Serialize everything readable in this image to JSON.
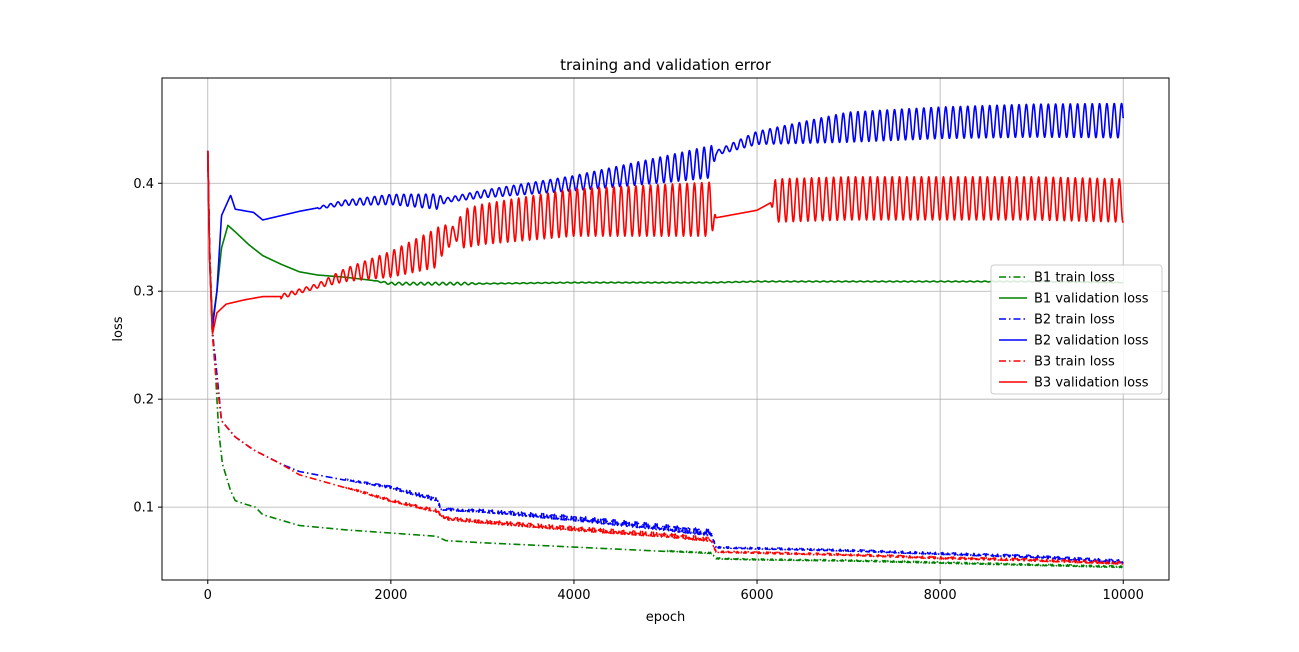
{
  "chart_data": {
    "type": "line",
    "title": "training and validation error",
    "xlabel": "epoch",
    "ylabel": "loss",
    "xlim": [
      -500,
      10500
    ],
    "ylim": [
      0.0325,
      0.4975
    ],
    "xticks": [
      0,
      2000,
      4000,
      6000,
      8000,
      10000
    ],
    "yticks": [
      0.1,
      0.2,
      0.3,
      0.4
    ],
    "xtick_labels": [
      "0",
      "2000",
      "4000",
      "6000",
      "8000",
      "10000"
    ],
    "ytick_labels": [
      "0.1",
      "0.2",
      "0.3",
      "0.4"
    ],
    "grid": true,
    "legend_position": "center-right",
    "series": [
      {
        "name": "B1 train loss",
        "color": "#008000",
        "style": "dashdot",
        "points": [
          [
            0,
            0.43
          ],
          [
            20,
            0.34
          ],
          [
            50,
            0.27
          ],
          [
            80,
            0.23
          ],
          [
            120,
            0.17
          ],
          [
            160,
            0.14
          ],
          [
            250,
            0.115
          ],
          [
            300,
            0.106
          ],
          [
            400,
            0.103
          ],
          [
            520,
            0.1
          ],
          [
            600,
            0.093
          ],
          [
            800,
            0.088
          ],
          [
            1000,
            0.083
          ],
          [
            1500,
            0.079
          ],
          [
            2000,
            0.076
          ],
          [
            2500,
            0.073
          ],
          [
            2600,
            0.069
          ],
          [
            3000,
            0.067
          ],
          [
            4000,
            0.063
          ],
          [
            5000,
            0.059
          ],
          [
            5500,
            0.057
          ],
          [
            5550,
            0.052
          ],
          [
            6000,
            0.051
          ],
          [
            7000,
            0.05
          ],
          [
            8000,
            0.048
          ],
          [
            9000,
            0.046
          ],
          [
            10000,
            0.044
          ]
        ],
        "osc": [
          [
            5000,
            0.001
          ],
          [
            10000,
            0.0015
          ]
        ]
      },
      {
        "name": "B1 validation loss",
        "color": "#008000",
        "style": "solid",
        "points": [
          [
            0,
            0.43
          ],
          [
            20,
            0.33
          ],
          [
            50,
            0.27
          ],
          [
            100,
            0.3
          ],
          [
            150,
            0.34
          ],
          [
            220,
            0.361
          ],
          [
            300,
            0.355
          ],
          [
            450,
            0.343
          ],
          [
            600,
            0.333
          ],
          [
            800,
            0.325
          ],
          [
            1000,
            0.318
          ],
          [
            1200,
            0.315
          ],
          [
            1500,
            0.313
          ],
          [
            1800,
            0.31
          ],
          [
            2000,
            0.307
          ],
          [
            3000,
            0.307
          ],
          [
            4000,
            0.308
          ],
          [
            5000,
            0.308
          ],
          [
            5500,
            0.308
          ],
          [
            6000,
            0.309
          ],
          [
            7000,
            0.309
          ],
          [
            8000,
            0.309
          ],
          [
            9000,
            0.309
          ],
          [
            10000,
            0.308
          ]
        ],
        "osc": [
          [
            1800,
            0.0
          ],
          [
            2000,
            0.0012
          ],
          [
            2800,
            0.0012
          ],
          [
            3000,
            0.0004
          ],
          [
            10000,
            0.0004
          ]
        ]
      },
      {
        "name": "B2 train loss",
        "color": "#0000ff",
        "style": "dashdot",
        "points": [
          [
            0,
            0.43
          ],
          [
            20,
            0.34
          ],
          [
            50,
            0.26
          ],
          [
            80,
            0.24
          ],
          [
            150,
            0.18
          ],
          [
            300,
            0.165
          ],
          [
            500,
            0.153
          ],
          [
            800,
            0.14
          ],
          [
            1000,
            0.133
          ],
          [
            1500,
            0.125
          ],
          [
            2000,
            0.117
          ],
          [
            2500,
            0.105
          ],
          [
            2550,
            0.097
          ],
          [
            3000,
            0.095
          ],
          [
            4000,
            0.087
          ],
          [
            5000,
            0.078
          ],
          [
            5500,
            0.073
          ],
          [
            5550,
            0.062
          ],
          [
            6000,
            0.061
          ],
          [
            7000,
            0.059
          ],
          [
            8000,
            0.056
          ],
          [
            9000,
            0.053
          ],
          [
            10000,
            0.048
          ]
        ],
        "osc": [
          [
            1500,
            0.0012
          ],
          [
            2500,
            0.004
          ],
          [
            2550,
            0.002
          ],
          [
            4000,
            0.005
          ],
          [
            5500,
            0.006
          ],
          [
            5550,
            0.0015
          ],
          [
            8000,
            0.002
          ],
          [
            10000,
            0.003
          ]
        ]
      },
      {
        "name": "B2 validation loss",
        "color": "#0000ff",
        "style": "solid",
        "points": [
          [
            0,
            0.43
          ],
          [
            20,
            0.33
          ],
          [
            50,
            0.265
          ],
          [
            100,
            0.3
          ],
          [
            150,
            0.37
          ],
          [
            250,
            0.389
          ],
          [
            300,
            0.376
          ],
          [
            500,
            0.373
          ],
          [
            600,
            0.366
          ],
          [
            800,
            0.37
          ],
          [
            1000,
            0.374
          ],
          [
            1500,
            0.382
          ],
          [
            2000,
            0.385
          ],
          [
            2500,
            0.383
          ],
          [
            3000,
            0.39
          ],
          [
            4000,
            0.4
          ],
          [
            5000,
            0.413
          ],
          [
            5500,
            0.42
          ],
          [
            5550,
            0.428
          ],
          [
            6000,
            0.442
          ],
          [
            7000,
            0.452
          ],
          [
            8000,
            0.456
          ],
          [
            9000,
            0.458
          ],
          [
            10000,
            0.458
          ]
        ],
        "osc": [
          [
            1200,
            0.001
          ],
          [
            2500,
            0.007
          ],
          [
            2600,
            0.002
          ],
          [
            4000,
            0.007
          ],
          [
            5500,
            0.015
          ],
          [
            5550,
            0.002
          ],
          [
            6000,
            0.006
          ],
          [
            7000,
            0.014
          ],
          [
            10000,
            0.016
          ]
        ]
      },
      {
        "name": "B3 train loss",
        "color": "#ff0000",
        "style": "dashdot",
        "points": [
          [
            0,
            0.43
          ],
          [
            20,
            0.34
          ],
          [
            50,
            0.26
          ],
          [
            80,
            0.23
          ],
          [
            150,
            0.18
          ],
          [
            300,
            0.165
          ],
          [
            500,
            0.153
          ],
          [
            800,
            0.14
          ],
          [
            1000,
            0.13
          ],
          [
            1500,
            0.118
          ],
          [
            2000,
            0.105
          ],
          [
            2500,
            0.095
          ],
          [
            2600,
            0.088
          ],
          [
            3000,
            0.085
          ],
          [
            4000,
            0.078
          ],
          [
            5000,
            0.072
          ],
          [
            5500,
            0.068
          ],
          [
            5550,
            0.058
          ],
          [
            6000,
            0.057
          ],
          [
            7000,
            0.055
          ],
          [
            8000,
            0.052
          ],
          [
            9000,
            0.05
          ],
          [
            10000,
            0.047
          ]
        ],
        "osc": [
          [
            1500,
            0.0015
          ],
          [
            2500,
            0.003
          ],
          [
            4000,
            0.004
          ],
          [
            5500,
            0.004
          ],
          [
            5550,
            0.0015
          ],
          [
            10000,
            0.0025
          ]
        ]
      },
      {
        "name": "B3 validation loss",
        "color": "#ff0000",
        "style": "solid",
        "points": [
          [
            0,
            0.43
          ],
          [
            20,
            0.33
          ],
          [
            50,
            0.26
          ],
          [
            100,
            0.28
          ],
          [
            200,
            0.288
          ],
          [
            400,
            0.292
          ],
          [
            600,
            0.295
          ],
          [
            800,
            0.295
          ],
          [
            1000,
            0.3
          ],
          [
            1200,
            0.305
          ],
          [
            1500,
            0.315
          ],
          [
            2000,
            0.325
          ],
          [
            2500,
            0.34
          ],
          [
            2550,
            0.347
          ],
          [
            2800,
            0.358
          ],
          [
            3000,
            0.362
          ],
          [
            4000,
            0.373
          ],
          [
            5000,
            0.375
          ],
          [
            5500,
            0.376
          ],
          [
            5550,
            0.368
          ],
          [
            6000,
            0.375
          ],
          [
            6150,
            0.382
          ],
          [
            6200,
            0.384
          ],
          [
            7000,
            0.386
          ],
          [
            8000,
            0.386
          ],
          [
            9000,
            0.386
          ],
          [
            10000,
            0.384
          ]
        ],
        "osc": [
          [
            800,
            0.002
          ],
          [
            1200,
            0.002
          ],
          [
            1500,
            0.006
          ],
          [
            2500,
            0.018
          ],
          [
            2700,
            0.006
          ],
          [
            2800,
            0.018
          ],
          [
            4000,
            0.022
          ],
          [
            5500,
            0.025
          ],
          [
            5550,
            0.0
          ],
          [
            6150,
            0.0
          ],
          [
            6200,
            0.02
          ],
          [
            10000,
            0.02
          ]
        ]
      }
    ]
  }
}
